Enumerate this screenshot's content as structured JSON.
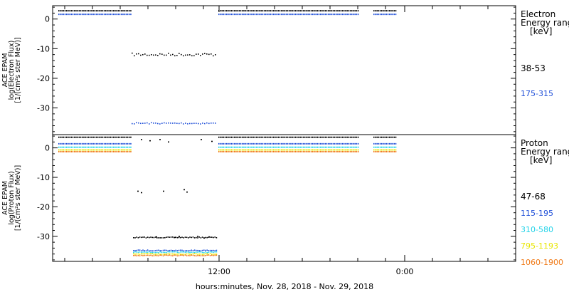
{
  "chart_data": {
    "type": "scatter",
    "xlabel": "hours:minutes, Nov. 28, 2018 - Nov. 29, 2018",
    "x_tick_labels": [
      "12:00",
      "0:00"
    ],
    "panels": [
      {
        "ylabel_lines": [
          "ACE EPAM",
          "log(Electron Flux)",
          "[1/(cm²s ster MeV)]"
        ],
        "ylim": [
          -39,
          4.5
        ],
        "yticks": [
          0,
          -10,
          -20,
          -30
        ],
        "legend_title_lines": [
          "Electron",
          "Energy ranges",
          "[keV]"
        ],
        "series": [
          {
            "name": "38-53",
            "color": "#000000",
            "level": 2.8,
            "gap_level": -11.8
          },
          {
            "name": "175-315",
            "color": "#1f4fd8",
            "level": 1.6,
            "gap_level": -35.0
          }
        ]
      },
      {
        "ylabel_lines": [
          "ACE EPAM",
          "log(Proton Flux)",
          "[1/(cm²s ster MeV)]"
        ],
        "ylim": [
          -38.5,
          4.5
        ],
        "yticks": [
          0,
          -10,
          -20,
          -30
        ],
        "legend_title_lines": [
          "Proton",
          "Energy ranges",
          "[keV]"
        ],
        "series": [
          {
            "name": "47-68",
            "color": "#000000",
            "level": 3.6,
            "gap_level": -30.2
          },
          {
            "name": "115-195",
            "color": "#1f4fd8",
            "level": 1.4,
            "gap_level": -34.6
          },
          {
            "name": "310-580",
            "color": "#22d3e8",
            "level": 0.2,
            "gap_level": -35.2
          },
          {
            "name": "795-1193",
            "color": "#e8e600",
            "level": -0.7,
            "gap_level": -35.8
          },
          {
            "name": "1060-1900",
            "color": "#f07814",
            "level": -1.3,
            "gap_level": -36.3
          }
        ]
      }
    ]
  }
}
